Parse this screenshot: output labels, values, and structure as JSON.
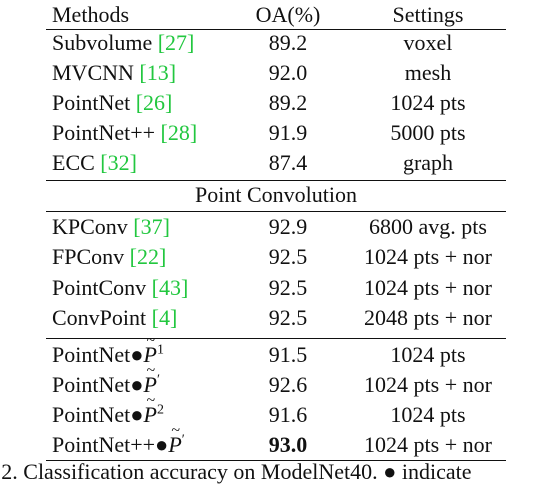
{
  "header": {
    "col1": "Methods",
    "col2": "OA(%)",
    "col3": "Settings"
  },
  "section_label": "Point Convolution",
  "caption": "e 2. Classification accuracy on ModelNet40. ● indicate",
  "rows_group1": [
    {
      "name": "Subvolume",
      "ref": "[27]",
      "oa": "89.2",
      "setting": "voxel"
    },
    {
      "name": "MVCNN",
      "ref": "[13]",
      "oa": "92.0",
      "setting": "mesh"
    },
    {
      "name": "PointNet",
      "ref": "[26]",
      "oa": "89.2",
      "setting": "1024 pts"
    },
    {
      "name": "PointNet++",
      "ref": "[28]",
      "oa": "91.9",
      "setting": "5000 pts"
    },
    {
      "name": "ECC",
      "ref": "[32]",
      "oa": "87.4",
      "setting": "graph"
    }
  ],
  "rows_group2": [
    {
      "name": "KPConv",
      "ref": "[37]",
      "oa": "92.9",
      "setting": "6800 avg. pts"
    },
    {
      "name": "FPConv",
      "ref": "[22]",
      "oa": "92.5",
      "setting": "1024 pts + nor"
    },
    {
      "name": "PointConv",
      "ref": "[43]",
      "oa": "92.5",
      "setting": "1024 pts + nor"
    },
    {
      "name": "ConvPoint",
      "ref": "[4]",
      "oa": "92.5",
      "setting": "2048 pts + nor"
    }
  ],
  "rows_group3": [
    {
      "prefix": "PointNet●",
      "var": "P",
      "sup": "1",
      "oa": "91.5",
      "setting": "1024 pts"
    },
    {
      "prefix": "PointNet●",
      "var": "P",
      "sup": "′",
      "oa": "92.6",
      "setting": "1024 pts + nor"
    },
    {
      "prefix": "PointNet●",
      "var": "P",
      "sup": "2",
      "oa": "91.6",
      "setting": "1024 pts"
    },
    {
      "prefix": "PointNet++●",
      "var": "P",
      "sup": "′",
      "oa": "93.0",
      "setting": "1024 pts + nor"
    }
  ],
  "colors": {
    "citation": "#22c73f",
    "text": "#111111"
  }
}
